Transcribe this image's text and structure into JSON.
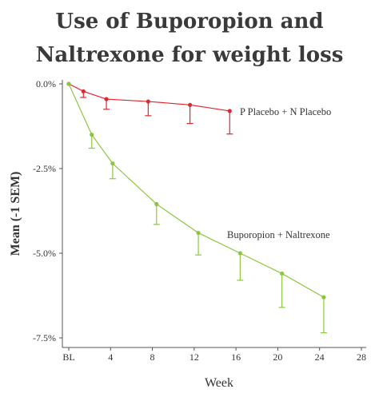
{
  "chart_data": {
    "type": "line",
    "title": "Use of Buporopion and Naltrexone for weight loss",
    "title_lines": [
      "Use of Buporopion and",
      "Naltrexone for weight loss"
    ],
    "xlabel": "Week",
    "ylabel": "Mean (-1 SEM)",
    "x_ticks": [
      {
        "x": 0,
        "label": "BL"
      },
      {
        "x": 4,
        "label": "4"
      },
      {
        "x": 8,
        "label": "8"
      },
      {
        "x": 12,
        "label": "12"
      },
      {
        "x": 16,
        "label": "16"
      },
      {
        "x": 20,
        "label": "20"
      },
      {
        "x": 24,
        "label": "24"
      },
      {
        "x": 28,
        "label": "28"
      }
    ],
    "y_ticks": [
      {
        "y": 0,
        "label": "0.0%"
      },
      {
        "y": -2.5,
        "label": "-2.5%"
      },
      {
        "y": -5.0,
        "label": "-5.0%"
      },
      {
        "y": -7.5,
        "label": "-7.5%"
      }
    ],
    "xlim": [
      -1,
      28
    ],
    "ylim": [
      -7.5,
      0.2
    ],
    "grid": false,
    "series": [
      {
        "name": "P Placebo + N Placebo",
        "color": "#e0262f",
        "x": [
          0,
          1.4,
          3.6,
          7.6,
          11.6,
          15.4
        ],
        "y": [
          0.0,
          -0.22,
          -0.45,
          -0.52,
          -0.62,
          -0.8
        ],
        "err": [
          0.0,
          0.18,
          0.3,
          0.42,
          0.55,
          0.68
        ]
      },
      {
        "name": "Buporopion + Naltrexone",
        "color": "#8cc63f",
        "x": [
          0,
          2.2,
          4.2,
          8.4,
          12.4,
          16.4,
          20.4,
          24.4
        ],
        "y": [
          0.0,
          -1.5,
          -2.35,
          -3.55,
          -4.4,
          -5.0,
          -5.6,
          -6.3
        ],
        "err": [
          0.0,
          0.4,
          0.45,
          0.6,
          0.65,
          0.8,
          1.0,
          1.05
        ]
      }
    ]
  }
}
